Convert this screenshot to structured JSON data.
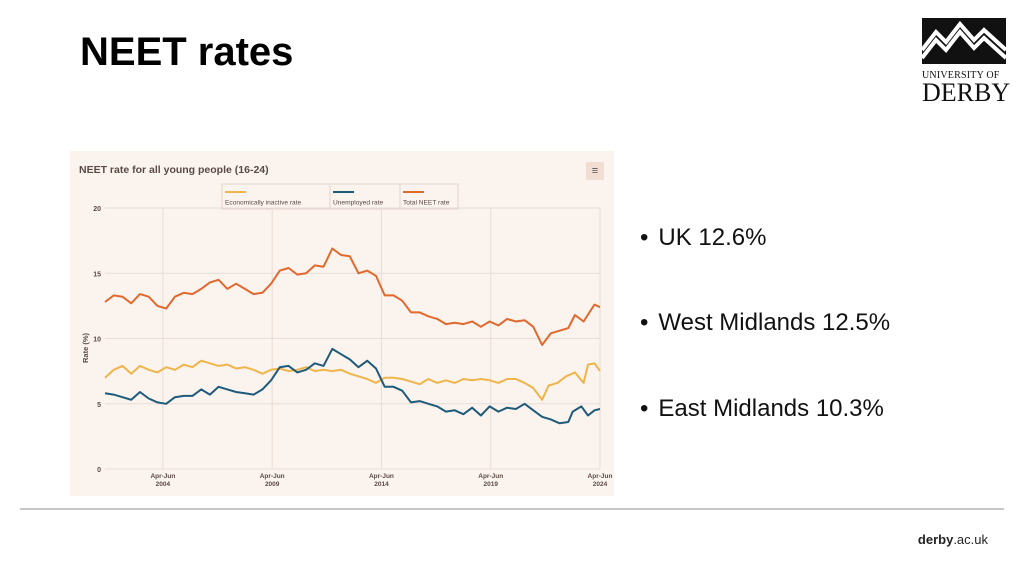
{
  "slide": {
    "title": "NEET rates",
    "bullets": [
      "UK 12.6%",
      "West Midlands 12.5%",
      "East Midlands 10.3%"
    ],
    "footer_bold": "derby",
    "footer_rest": ".ac.uk"
  },
  "logo": {
    "line1": "UNIVERSITY OF",
    "line2": "DERBY"
  },
  "colors": {
    "inactive": "#f0b54a",
    "unemployed": "#1e5b7a",
    "total": "#e0692e",
    "panel": "#fbf3ee"
  },
  "chart_data": {
    "type": "line",
    "title": "NEET rate for all young people (16-24)",
    "ylabel": "Rate (%)",
    "ylim": [
      0,
      20
    ],
    "yticks": [
      0,
      5,
      10,
      15,
      20
    ],
    "xlim": [
      2001.6,
      2024.25
    ],
    "xticks": [
      {
        "x": 2004.25,
        "top": "Apr-Jun",
        "bottom": "2004"
      },
      {
        "x": 2009.25,
        "top": "Apr-Jun",
        "bottom": "2009"
      },
      {
        "x": 2014.25,
        "top": "Apr-Jun",
        "bottom": "2014"
      },
      {
        "x": 2019.25,
        "top": "Apr-Jun",
        "bottom": "2019"
      },
      {
        "x": 2024.25,
        "top": "Apr-Jun",
        "bottom": "2024"
      }
    ],
    "series": [
      {
        "name": "Economically inactive rate",
        "color": "#f0b54a",
        "points": [
          [
            2001.6,
            7.0
          ],
          [
            2002.0,
            7.6
          ],
          [
            2002.4,
            7.9
          ],
          [
            2002.8,
            7.3
          ],
          [
            2003.2,
            7.9
          ],
          [
            2003.6,
            7.6
          ],
          [
            2004.0,
            7.4
          ],
          [
            2004.4,
            7.8
          ],
          [
            2004.8,
            7.6
          ],
          [
            2005.2,
            8.0
          ],
          [
            2005.6,
            7.8
          ],
          [
            2006.0,
            8.3
          ],
          [
            2006.4,
            8.1
          ],
          [
            2006.8,
            7.9
          ],
          [
            2007.2,
            8.0
          ],
          [
            2007.6,
            7.7
          ],
          [
            2008.0,
            7.8
          ],
          [
            2008.4,
            7.6
          ],
          [
            2008.8,
            7.3
          ],
          [
            2009.2,
            7.6
          ],
          [
            2009.6,
            7.7
          ],
          [
            2010.0,
            7.5
          ],
          [
            2010.4,
            7.6
          ],
          [
            2010.8,
            7.8
          ],
          [
            2011.2,
            7.5
          ],
          [
            2011.6,
            7.6
          ],
          [
            2012.0,
            7.5
          ],
          [
            2012.4,
            7.6
          ],
          [
            2012.8,
            7.3
          ],
          [
            2013.2,
            7.1
          ],
          [
            2013.6,
            6.9
          ],
          [
            2014.0,
            6.6
          ],
          [
            2014.4,
            7.0
          ],
          [
            2014.8,
            7.0
          ],
          [
            2015.2,
            6.9
          ],
          [
            2015.6,
            6.7
          ],
          [
            2016.0,
            6.5
          ],
          [
            2016.4,
            6.9
          ],
          [
            2016.8,
            6.6
          ],
          [
            2017.2,
            6.8
          ],
          [
            2017.6,
            6.6
          ],
          [
            2018.0,
            6.9
          ],
          [
            2018.4,
            6.8
          ],
          [
            2018.8,
            6.9
          ],
          [
            2019.2,
            6.8
          ],
          [
            2019.6,
            6.6
          ],
          [
            2020.0,
            6.9
          ],
          [
            2020.4,
            6.9
          ],
          [
            2020.8,
            6.6
          ],
          [
            2021.2,
            6.2
          ],
          [
            2021.6,
            5.3
          ],
          [
            2021.9,
            6.4
          ],
          [
            2022.3,
            6.6
          ],
          [
            2022.7,
            7.1
          ],
          [
            2023.1,
            7.4
          ],
          [
            2023.5,
            6.6
          ],
          [
            2023.7,
            8.0
          ],
          [
            2024.0,
            8.1
          ],
          [
            2024.25,
            7.5
          ]
        ]
      },
      {
        "name": "Unemployed rate",
        "color": "#1e5b7a",
        "points": [
          [
            2001.6,
            5.8
          ],
          [
            2002.0,
            5.7
          ],
          [
            2002.4,
            5.5
          ],
          [
            2002.8,
            5.3
          ],
          [
            2003.2,
            5.9
          ],
          [
            2003.6,
            5.4
          ],
          [
            2004.0,
            5.1
          ],
          [
            2004.4,
            5.0
          ],
          [
            2004.8,
            5.5
          ],
          [
            2005.2,
            5.6
          ],
          [
            2005.6,
            5.6
          ],
          [
            2006.0,
            6.1
          ],
          [
            2006.4,
            5.7
          ],
          [
            2006.8,
            6.3
          ],
          [
            2007.2,
            6.1
          ],
          [
            2007.6,
            5.9
          ],
          [
            2008.0,
            5.8
          ],
          [
            2008.4,
            5.7
          ],
          [
            2008.8,
            6.1
          ],
          [
            2009.2,
            6.8
          ],
          [
            2009.6,
            7.8
          ],
          [
            2010.0,
            7.9
          ],
          [
            2010.4,
            7.4
          ],
          [
            2010.8,
            7.6
          ],
          [
            2011.2,
            8.1
          ],
          [
            2011.6,
            7.9
          ],
          [
            2012.0,
            9.2
          ],
          [
            2012.4,
            8.8
          ],
          [
            2012.8,
            8.4
          ],
          [
            2013.2,
            7.8
          ],
          [
            2013.6,
            8.3
          ],
          [
            2014.0,
            7.7
          ],
          [
            2014.4,
            6.3
          ],
          [
            2014.8,
            6.3
          ],
          [
            2015.2,
            6.0
          ],
          [
            2015.6,
            5.1
          ],
          [
            2016.0,
            5.2
          ],
          [
            2016.4,
            5.0
          ],
          [
            2016.8,
            4.8
          ],
          [
            2017.2,
            4.4
          ],
          [
            2017.6,
            4.5
          ],
          [
            2018.0,
            4.2
          ],
          [
            2018.4,
            4.7
          ],
          [
            2018.8,
            4.1
          ],
          [
            2019.2,
            4.8
          ],
          [
            2019.6,
            4.4
          ],
          [
            2020.0,
            4.7
          ],
          [
            2020.4,
            4.6
          ],
          [
            2020.8,
            5.0
          ],
          [
            2021.2,
            4.5
          ],
          [
            2021.6,
            4.0
          ],
          [
            2022.0,
            3.8
          ],
          [
            2022.4,
            3.5
          ],
          [
            2022.8,
            3.6
          ],
          [
            2023.0,
            4.4
          ],
          [
            2023.4,
            4.8
          ],
          [
            2023.7,
            4.1
          ],
          [
            2024.0,
            4.5
          ],
          [
            2024.25,
            4.6
          ]
        ]
      },
      {
        "name": "Total NEET rate",
        "color": "#e0692e",
        "points": [
          [
            2001.6,
            12.8
          ],
          [
            2002.0,
            13.3
          ],
          [
            2002.4,
            13.2
          ],
          [
            2002.8,
            12.7
          ],
          [
            2003.2,
            13.4
          ],
          [
            2003.6,
            13.2
          ],
          [
            2004.0,
            12.5
          ],
          [
            2004.4,
            12.3
          ],
          [
            2004.8,
            13.2
          ],
          [
            2005.2,
            13.5
          ],
          [
            2005.6,
            13.4
          ],
          [
            2006.0,
            13.8
          ],
          [
            2006.4,
            14.3
          ],
          [
            2006.8,
            14.5
          ],
          [
            2007.2,
            13.8
          ],
          [
            2007.6,
            14.2
          ],
          [
            2008.0,
            13.8
          ],
          [
            2008.4,
            13.4
          ],
          [
            2008.8,
            13.5
          ],
          [
            2009.2,
            14.2
          ],
          [
            2009.6,
            15.2
          ],
          [
            2010.0,
            15.4
          ],
          [
            2010.4,
            14.9
          ],
          [
            2010.8,
            15.0
          ],
          [
            2011.2,
            15.6
          ],
          [
            2011.6,
            15.5
          ],
          [
            2012.0,
            16.9
          ],
          [
            2012.4,
            16.4
          ],
          [
            2012.8,
            16.3
          ],
          [
            2013.2,
            15.0
          ],
          [
            2013.6,
            15.2
          ],
          [
            2014.0,
            14.8
          ],
          [
            2014.4,
            13.3
          ],
          [
            2014.8,
            13.3
          ],
          [
            2015.2,
            12.9
          ],
          [
            2015.6,
            12.0
          ],
          [
            2016.0,
            12.0
          ],
          [
            2016.4,
            11.7
          ],
          [
            2016.8,
            11.5
          ],
          [
            2017.2,
            11.1
          ],
          [
            2017.6,
            11.2
          ],
          [
            2018.0,
            11.1
          ],
          [
            2018.4,
            11.3
          ],
          [
            2018.8,
            10.9
          ],
          [
            2019.2,
            11.3
          ],
          [
            2019.6,
            11.0
          ],
          [
            2020.0,
            11.5
          ],
          [
            2020.4,
            11.3
          ],
          [
            2020.8,
            11.4
          ],
          [
            2021.2,
            10.9
          ],
          [
            2021.6,
            9.5
          ],
          [
            2022.0,
            10.4
          ],
          [
            2022.4,
            10.6
          ],
          [
            2022.8,
            10.8
          ],
          [
            2023.1,
            11.8
          ],
          [
            2023.5,
            11.3
          ],
          [
            2023.8,
            12.1
          ],
          [
            2024.0,
            12.6
          ],
          [
            2024.25,
            12.4
          ]
        ]
      }
    ],
    "legend": "top-center",
    "grid": "horizontal"
  }
}
